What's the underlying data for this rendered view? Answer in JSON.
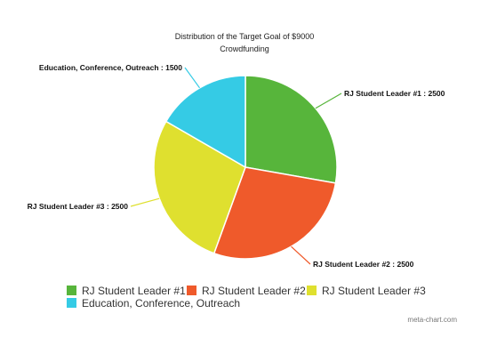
{
  "chart_data": {
    "type": "pie",
    "title": "Distribution of the Target Goal of $9000",
    "subtitle": "Crowdfunding",
    "slices": [
      {
        "label": "RJ Student Leader #1",
        "value": 2500,
        "color": "#57b53b"
      },
      {
        "label": "RJ Student Leader #2",
        "value": 2500,
        "color": "#ef5a2b"
      },
      {
        "label": "RJ Student Leader #3",
        "value": 2500,
        "color": "#dfe02f"
      },
      {
        "label": "Education, Conference, Outreach",
        "value": 1500,
        "color": "#35cbe5"
      }
    ],
    "label_separator": " : ",
    "legend_position": "bottom"
  },
  "watermark": "meta-chart.com"
}
